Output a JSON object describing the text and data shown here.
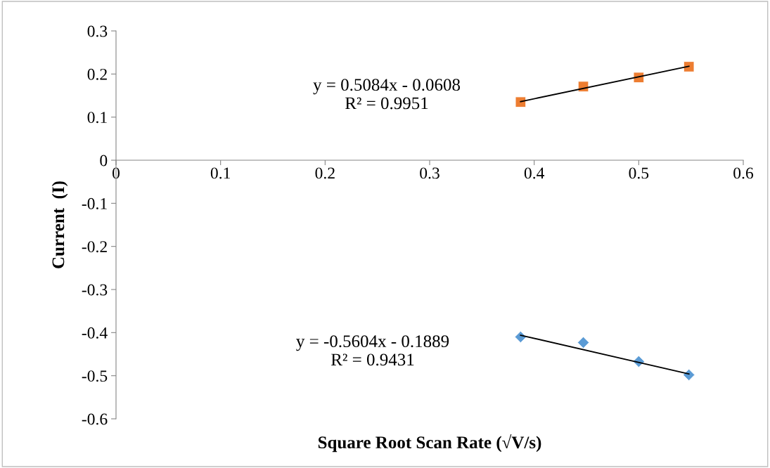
{
  "chart_data": {
    "type": "scatter",
    "xlabel": "Square Root Scan Rate (√V/s)",
    "ylabel": "Current  (I)",
    "xlim": [
      0,
      0.6
    ],
    "xticks": [
      0,
      0.1,
      0.2,
      0.3,
      0.4,
      0.5,
      0.6
    ],
    "ylim": [
      -0.6,
      0.3
    ],
    "yticks": [
      -0.6,
      -0.5,
      -0.4,
      -0.3,
      -0.2,
      -0.1,
      0,
      0.1,
      0.2,
      0.3
    ],
    "grid": false,
    "legend": false,
    "series": [
      {
        "marker": "square",
        "color": "#ed7d31",
        "x": [
          0.387,
          0.447,
          0.5,
          0.548
        ],
        "values": [
          0.135,
          0.171,
          0.192,
          0.217
        ]
      },
      {
        "type": "line",
        "marker": "none",
        "color": "#000000",
        "x": [
          0.387,
          0.548
        ],
        "values": [
          0.136,
          0.218
        ]
      },
      {
        "marker": "diamond",
        "color": "#5b9bd5",
        "x": [
          0.387,
          0.447,
          0.5,
          0.548
        ],
        "values": [
          -0.41,
          -0.423,
          -0.467,
          -0.498
        ]
      },
      {
        "type": "line",
        "marker": "none",
        "color": "#000000",
        "x": [
          0.387,
          0.548
        ],
        "values": [
          -0.406,
          -0.496
        ]
      }
    ],
    "annotations": [
      "y = 0.5084x - 0.0608\nR² = 0.9951",
      "y = -0.5604x - 0.1889\nR² = 0.9431"
    ]
  }
}
